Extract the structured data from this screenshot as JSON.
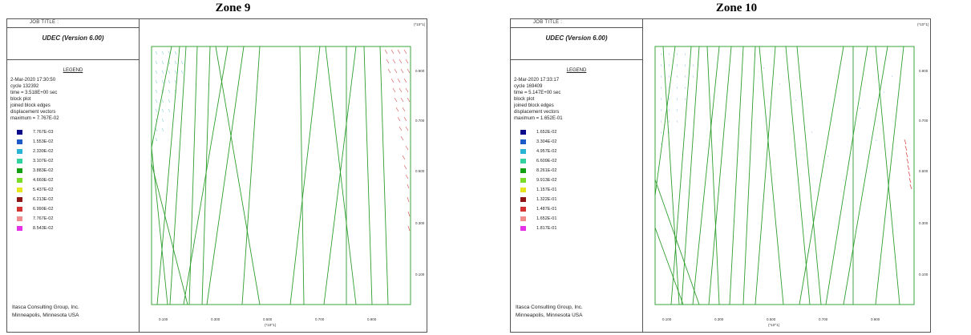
{
  "zones": [
    {
      "title": "Zone 9",
      "job_title_label": "JOB TITLE :",
      "program": "UDEC (Version 6.00)",
      "legend_heading": "LEGEND",
      "info": [
        "2-Mar-2020 17:30:50",
        "cycle 132392",
        "time = 3.518E+00 sec",
        "block plot",
        "joined block edges",
        "displacement vectors",
        "maximum = 7.767E-02"
      ],
      "legend": [
        {
          "label": "7.767E-03",
          "color": "#0a0a8a"
        },
        {
          "label": "1.553E-02",
          "color": "#1e5ac8"
        },
        {
          "label": "2.330E-02",
          "color": "#28b4d2"
        },
        {
          "label": "3.107E-02",
          "color": "#32d2a0"
        },
        {
          "label": "3.883E-02",
          "color": "#14a014"
        },
        {
          "label": "4.660E-02",
          "color": "#78dc28"
        },
        {
          "label": "5.437E-02",
          "color": "#e6e61e"
        },
        {
          "label": "6.213E-02",
          "color": "#8c1414"
        },
        {
          "label": "6.990E-02",
          "color": "#d23232"
        },
        {
          "label": "7.767E-02",
          "color": "#f08c8c"
        },
        {
          "label": "8.543E-02",
          "color": "#e632e6"
        }
      ],
      "company": [
        "Itasca Consulting Group, Inc.",
        "Minneapolis, Minnesota USA"
      ],
      "yticks": [
        "0.900",
        "0.700",
        "0.500",
        "0.300",
        "0.100"
      ],
      "xticks": [
        "0.100",
        "0.300",
        "0.500",
        "0.700",
        "0.900"
      ],
      "y_unit": "(*10^1)",
      "x_unit": "(*10^1)"
    },
    {
      "title": "Zone 10",
      "job_title_label": "JOB TITLE :",
      "program": "UDEC (Version 6.00)",
      "legend_heading": "LEGEND",
      "info": [
        "2-Mar-2020 17:33:17",
        "cycle 169409",
        "time = 5.147E+00 sec",
        "block plot",
        "joined block edges",
        "displacement vectors",
        "maximum = 1.652E-01"
      ],
      "legend": [
        {
          "label": "1.652E-02",
          "color": "#0a0a8a"
        },
        {
          "label": "3.304E-02",
          "color": "#1e5ac8"
        },
        {
          "label": "4.957E-02",
          "color": "#28b4d2"
        },
        {
          "label": "6.609E-02",
          "color": "#32d2a0"
        },
        {
          "label": "8.261E-02",
          "color": "#14a014"
        },
        {
          "label": "9.913E-02",
          "color": "#78dc28"
        },
        {
          "label": "1.157E-01",
          "color": "#e6e61e"
        },
        {
          "label": "1.322E-01",
          "color": "#8c1414"
        },
        {
          "label": "1.487E-01",
          "color": "#d23232"
        },
        {
          "label": "1.652E-01",
          "color": "#f08c8c"
        },
        {
          "label": "1.817E-01",
          "color": "#e632e6"
        }
      ],
      "company": [
        "Itasca Consulting Group, Inc.",
        "Minneapolis, Minnesota USA"
      ],
      "yticks": [
        "0.900",
        "0.700",
        "0.500",
        "0.300",
        "0.100"
      ],
      "xticks": [
        "0.100",
        "0.300",
        "0.500",
        "0.700",
        "0.900"
      ],
      "y_unit": "(*10^1)",
      "x_unit": "(*10^1)"
    }
  ]
}
